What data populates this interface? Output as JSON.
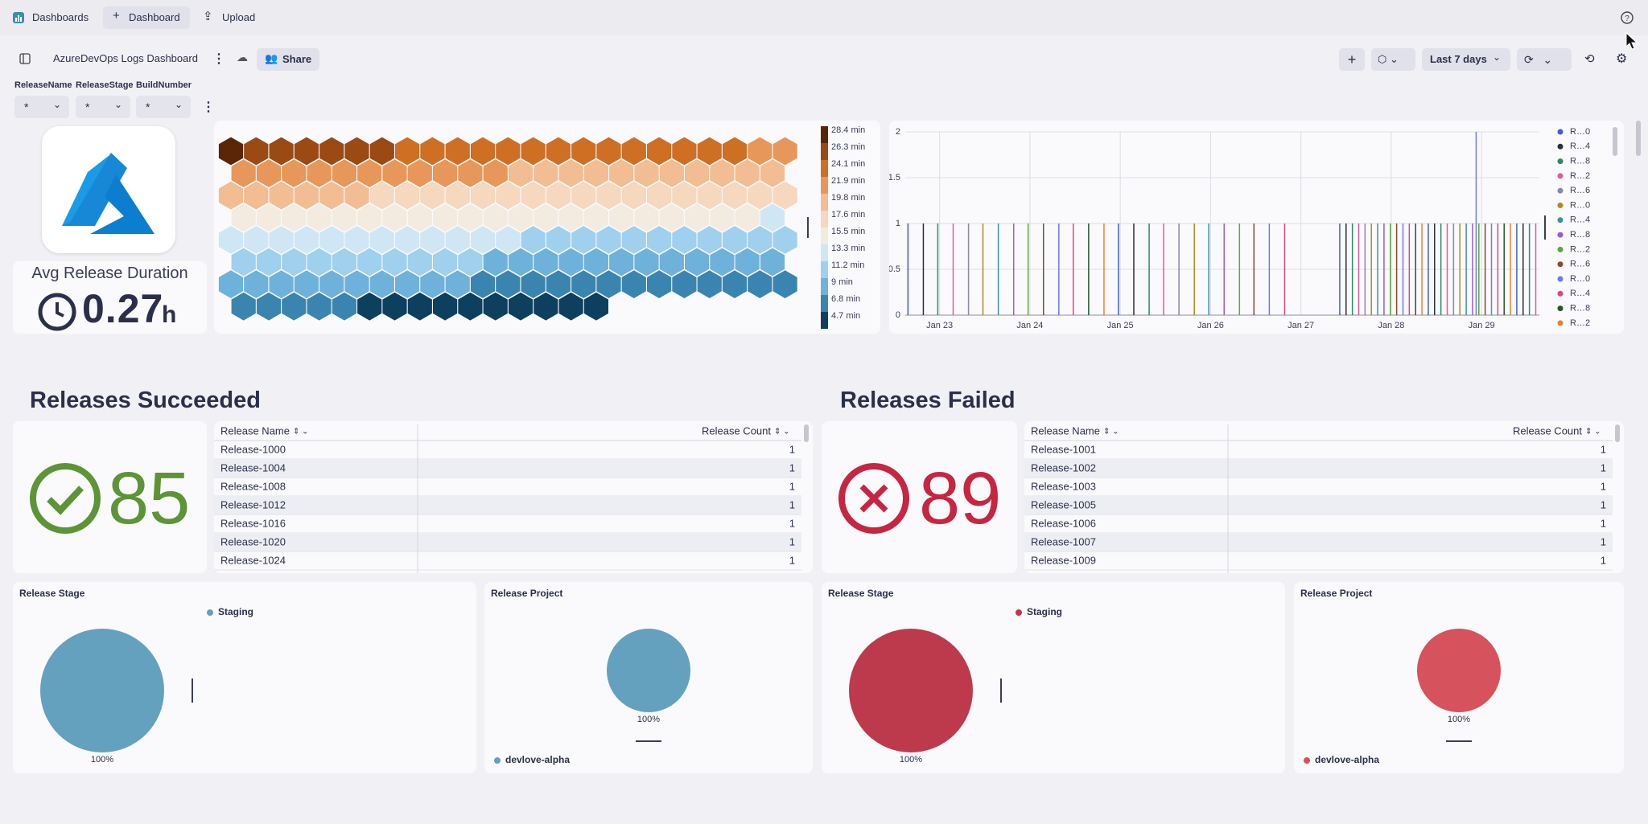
{
  "nav": {
    "dashboards": "Dashboards",
    "dashboard": "Dashboard",
    "upload": "Upload"
  },
  "toolbar": {
    "title": "AzureDevOps Logs Dashboard",
    "share": "Share",
    "timeframe": "Last 7 days"
  },
  "filters": [
    {
      "label": "ReleaseName",
      "value": "*"
    },
    {
      "label": "ReleaseStage",
      "value": "*"
    },
    {
      "label": "BuildNumber",
      "value": "*"
    }
  ],
  "avg_duration": {
    "title": "Avg Release Duration",
    "value": 0.27,
    "unit": "h"
  },
  "honeycomb": {
    "type": "honeycomb",
    "values": [
      28.4,
      26.8,
      26.7,
      26.6,
      26.5,
      26.4,
      26.3,
      26.2,
      26.1,
      26.0,
      25.9,
      25.8,
      25.7,
      25.6,
      25.5,
      25.4,
      25.3,
      25.2,
      25.1,
      25.0,
      24.5,
      23.5,
      23.0,
      22.9,
      22.8,
      22.7,
      22.6,
      22.5,
      22.4,
      22.3,
      22.2,
      22.1,
      22.0,
      21.9,
      21.8,
      21.7,
      21.6,
      21.5,
      21.4,
      21.3,
      21.2,
      21.1,
      21.0,
      20.9,
      20.8,
      20.6,
      20.4,
      20.2,
      20.0,
      19.9,
      19.8,
      19.7,
      19.6,
      19.5,
      19.4,
      19.3,
      19.2,
      19.1,
      19.0,
      18.9,
      18.8,
      18.7,
      18.6,
      18.5,
      18.4,
      18.2,
      18.0,
      17.8,
      17.5,
      17.4,
      17.3,
      17.2,
      17.1,
      17.0,
      16.9,
      16.8,
      16.7,
      16.6,
      16.5,
      16.4,
      16.3,
      16.2,
      16.1,
      16.0,
      15.9,
      15.8,
      15.7,
      15.6,
      15.5,
      15.4,
      15.3,
      15.1,
      14.9,
      14.7,
      14.5,
      14.3,
      14.1,
      13.9,
      13.7,
      13.5,
      13.4,
      13.3,
      13.2,
      13.1,
      13.0,
      12.9,
      12.8,
      12.7,
      12.6,
      12.5,
      12.4,
      12.3,
      12.2,
      12.1,
      12.0,
      11.9,
      11.8,
      11.7,
      11.6,
      11.5,
      11.4,
      11.3,
      11.2,
      11.1,
      11.0,
      10.9,
      10.8,
      10.7,
      10.6,
      10.5,
      10.4,
      10.3,
      10.2,
      10.1,
      10.0,
      9.9,
      9.8,
      9.7,
      9.6,
      9.5,
      9.4,
      9.3,
      9.2,
      9.1,
      9.0,
      8.9,
      8.8,
      8.7,
      8.6,
      8.5,
      8.4,
      8.3,
      8.2,
      8.1,
      8.0,
      7.9,
      7.8,
      7.7,
      7.6,
      7.4,
      7.2,
      7.0,
      6.8,
      6.6,
      6.4,
      6.2,
      6.0,
      5.8,
      5.6,
      5.4,
      5.0,
      4.8,
      4.7
    ],
    "legend": [
      {
        "value": 28.4,
        "label": "28.4 min",
        "color": "#5b2608"
      },
      {
        "value": 26.3,
        "label": "26.3 min",
        "color": "#9a4a12"
      },
      {
        "value": 24.1,
        "label": "24.1 min",
        "color": "#cf6f24"
      },
      {
        "value": 21.9,
        "label": "21.9 min",
        "color": "#e8975a"
      },
      {
        "value": 19.8,
        "label": "19.8 min",
        "color": "#f2bd92"
      },
      {
        "value": 17.6,
        "label": "17.6 min",
        "color": "#f5d8bd"
      },
      {
        "value": 15.5,
        "label": "15.5 min",
        "color": "#f3ebe0"
      },
      {
        "value": 13.3,
        "label": "13.3 min",
        "color": "#cfe6f4"
      },
      {
        "value": 11.2,
        "label": "11.2 min",
        "color": "#9fd0ee"
      },
      {
        "value": 9,
        "label": "9 min",
        "color": "#6eb2dc"
      },
      {
        "value": 6.8,
        "label": "6.8 min",
        "color": "#3a85b0"
      },
      {
        "value": 4.7,
        "label": "4.7 min",
        "color": "#0d3f5e"
      }
    ]
  },
  "timeline": {
    "type": "spike",
    "xlim": [
      22.62,
      29.64
    ],
    "ylim": [
      0,
      2
    ],
    "yticks": [
      0,
      0.5,
      1,
      1.5,
      2
    ],
    "xticks": [
      {
        "value": 23,
        "label": "Jan 23"
      },
      {
        "value": 24,
        "label": "Jan 24"
      },
      {
        "value": 25,
        "label": "Jan 25"
      },
      {
        "value": 26,
        "label": "Jan 26"
      },
      {
        "value": 27,
        "label": "Jan 27"
      },
      {
        "value": 28,
        "label": "Jan 28"
      },
      {
        "value": 29,
        "label": "Jan 29"
      }
    ],
    "grid": true,
    "series": [
      {
        "name": "R…0",
        "color": "#3a5fd0",
        "x": [
          22.65,
          24.98,
          27.43,
          28.41,
          29.39
        ],
        "values": [
          1,
          1,
          1,
          1,
          1
        ]
      },
      {
        "name": "R…4",
        "color": "#2a2e3a",
        "x": [
          22.82,
          25.15,
          27.5,
          28.48,
          29.46
        ],
        "values": [
          1,
          1,
          1,
          1,
          1
        ]
      },
      {
        "name": "R…8",
        "color": "#2a8a6a",
        "x": [
          22.98,
          25.32,
          27.57,
          28.55,
          29.53
        ],
        "values": [
          1,
          1,
          1,
          1,
          1
        ]
      },
      {
        "name": "R…2",
        "color": "#e05a9a",
        "x": [
          23.15,
          25.48,
          27.64,
          28.62,
          29.6
        ],
        "values": [
          1,
          1,
          1,
          1,
          1
        ]
      },
      {
        "name": "R…6",
        "color": "#8a84b0",
        "x": [
          23.32,
          25.65,
          27.71,
          28.69
        ],
        "values": [
          1,
          1,
          1,
          1
        ]
      },
      {
        "name": "R…0",
        "color": "#b08a20",
        "x": [
          23.48,
          25.82,
          27.78,
          28.76
        ],
        "values": [
          1,
          1,
          1,
          1
        ]
      },
      {
        "name": "R…4",
        "color": "#3a8fb0",
        "x": [
          23.65,
          25.98,
          27.85,
          28.83
        ],
        "values": [
          1,
          1,
          1,
          1
        ]
      },
      {
        "name": "R…8",
        "color": "#9a5ad0",
        "x": [
          23.82,
          26.15,
          27.92,
          28.9
        ],
        "values": [
          1,
          1,
          1,
          1
        ]
      },
      {
        "name": "R…2",
        "color": "#5aa83a",
        "x": [
          23.98,
          26.32,
          27.99,
          28.97
        ],
        "values": [
          1,
          1,
          1,
          1
        ]
      },
      {
        "name": "R…6",
        "color": "#8a4a2a",
        "x": [
          24.15,
          26.48,
          28.06,
          29.04
        ],
        "values": [
          1,
          1,
          1,
          1
        ]
      },
      {
        "name": "R…0",
        "color": "#6a7af0",
        "x": [
          24.32,
          26.65,
          28.13,
          28.94,
          29.11
        ],
        "values": [
          1,
          1,
          1,
          2,
          1
        ]
      },
      {
        "name": "R…4",
        "color": "#e0457a",
        "x": [
          24.48,
          26.82,
          28.2,
          29.18
        ],
        "values": [
          1,
          1,
          1,
          1
        ]
      },
      {
        "name": "R…8",
        "color": "#1f5a2a",
        "x": [
          24.65,
          28.27,
          29.25
        ],
        "values": [
          1,
          1,
          1
        ]
      },
      {
        "name": "R…2",
        "color": "#e8822a",
        "x": [
          24.82,
          28.34,
          29.32
        ],
        "values": [
          1,
          1,
          1
        ]
      }
    ]
  },
  "succeeded": {
    "heading": "Releases Succeeded",
    "value": 85,
    "table": {
      "columns": [
        "Release Name",
        "Release Count"
      ],
      "rows": [
        [
          "Release-1000",
          1
        ],
        [
          "Release-1004",
          1
        ],
        [
          "Release-1008",
          1
        ],
        [
          "Release-1012",
          1
        ],
        [
          "Release-1016",
          1
        ],
        [
          "Release-1020",
          1
        ],
        [
          "Release-1024",
          1
        ]
      ]
    }
  },
  "failed": {
    "heading": "Releases Failed",
    "value": 89,
    "table": {
      "columns": [
        "Release Name",
        "Release Count"
      ],
      "rows": [
        [
          "Release-1001",
          1
        ],
        [
          "Release-1002",
          1
        ],
        [
          "Release-1003",
          1
        ],
        [
          "Release-1005",
          1
        ],
        [
          "Release-1006",
          1
        ],
        [
          "Release-1007",
          1
        ],
        [
          "Release-1009",
          1
        ]
      ]
    }
  },
  "pies": [
    {
      "type": "pie",
      "title": "Release Stage",
      "categories": [
        "Staging"
      ],
      "values": [
        100
      ],
      "value_labels": [
        "100%"
      ],
      "colors": [
        "#63a1bf"
      ],
      "legend": "top"
    },
    {
      "type": "pie",
      "title": "Release Project",
      "categories": [
        "devlove-alpha"
      ],
      "values": [
        100
      ],
      "value_labels": [
        "100%"
      ],
      "colors": [
        "#63a1bf"
      ],
      "legend": "bottom"
    },
    {
      "type": "pie",
      "title": "Release Stage",
      "categories": [
        "Staging"
      ],
      "values": [
        100
      ],
      "value_labels": [
        "100%"
      ],
      "colors": [
        "#bd3a4c"
      ],
      "legend": "top"
    },
    {
      "type": "pie",
      "title": "Release Project",
      "categories": [
        "devlove-alpha"
      ],
      "values": [
        100
      ],
      "value_labels": [
        "100%"
      ],
      "colors": [
        "#d6525c"
      ],
      "legend": "bottom"
    }
  ]
}
